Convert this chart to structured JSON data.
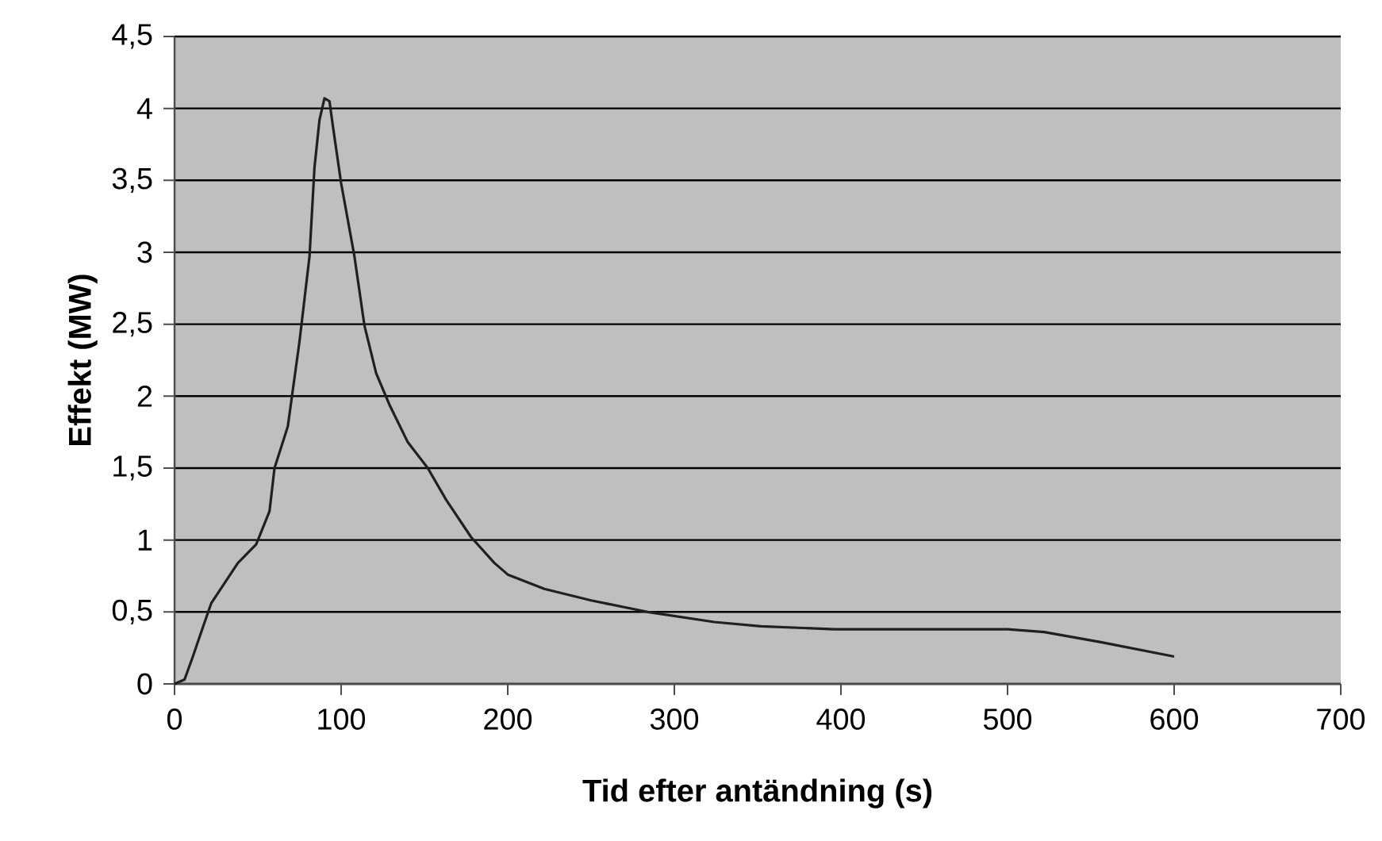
{
  "chart_data": {
    "type": "line",
    "xlabel": "Tid efter antändning (s)",
    "ylabel": "Effekt (MW)",
    "x": [
      0,
      6,
      11,
      16,
      22,
      38,
      49,
      57,
      60,
      68,
      75,
      81,
      84,
      87,
      90,
      93,
      95,
      100,
      108,
      114,
      121,
      129,
      140,
      152,
      163,
      178,
      192,
      200,
      211,
      222,
      250,
      284,
      324,
      352,
      396,
      500,
      522,
      556,
      600
    ],
    "series": [
      {
        "color": "#202020",
        "values": [
          0,
          0.03,
          0.19,
          0.36,
          0.56,
          0.84,
          0.97,
          1.2,
          1.5,
          1.79,
          2.38,
          2.97,
          3.59,
          3.92,
          4.07,
          4.05,
          3.88,
          3.48,
          2.97,
          2.49,
          2.16,
          1.94,
          1.68,
          1.5,
          1.28,
          1.02,
          0.84,
          0.76,
          0.71,
          0.66,
          0.58,
          0.5,
          0.43,
          0.4,
          0.38,
          0.38,
          0.36,
          0.29,
          0.19
        ]
      }
    ],
    "xlim": [
      0,
      700
    ],
    "ylim": [
      0,
      4.5
    ],
    "xticks": [
      0,
      100,
      200,
      300,
      400,
      500,
      600,
      700
    ],
    "yticks": [
      0,
      {
        "value": 0.5,
        "label": "0,5"
      },
      1,
      {
        "value": 1.5,
        "label": "1,5"
      },
      2,
      {
        "value": 2.5,
        "label": "2,5"
      },
      3,
      {
        "value": 3.5,
        "label": "3,5"
      },
      4,
      {
        "value": 4.5,
        "label": "4,5"
      }
    ],
    "grid": "y",
    "line_style": "solid"
  }
}
